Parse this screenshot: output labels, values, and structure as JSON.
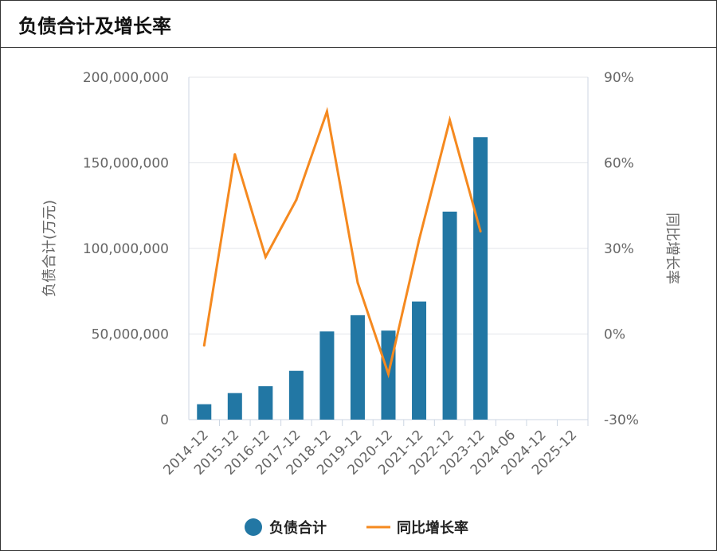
{
  "chart_title": "负债合计及增长率",
  "chart_data": {
    "type": "bar",
    "title": "负债合计及增长率",
    "categories": [
      "2014-12",
      "2015-12",
      "2016-12",
      "2017-12",
      "2018-12",
      "2019-12",
      "2020-12",
      "2021-12",
      "2022-12",
      "2023-12",
      "2024-06",
      "2024-12",
      "2025-12"
    ],
    "ylabel": "负债合计(万元)",
    "y2label": "同比增长率",
    "ylim": [
      0,
      200000000
    ],
    "y2lim": [
      -30,
      90
    ],
    "yticks": [
      "0",
      "50,000,000",
      "100,000,000",
      "150,000,000",
      "200,000,000"
    ],
    "y2ticks": [
      "-30%",
      "0%",
      "30%",
      "60%",
      "90%"
    ],
    "grid": true,
    "legend_position": "bottom",
    "series": [
      {
        "name": "负债合计",
        "type": "bar",
        "color": "#2277a4",
        "values": [
          9000000,
          15500000,
          19500000,
          28500000,
          51500000,
          61000000,
          52000000,
          69000000,
          121500000,
          165000000,
          null,
          null,
          null
        ]
      },
      {
        "name": "同比增长率",
        "type": "line",
        "color": "#f5891f",
        "values": [
          -4,
          63,
          27,
          47,
          78,
          18,
          -14,
          33,
          75,
          36,
          null,
          null,
          null
        ]
      }
    ]
  }
}
